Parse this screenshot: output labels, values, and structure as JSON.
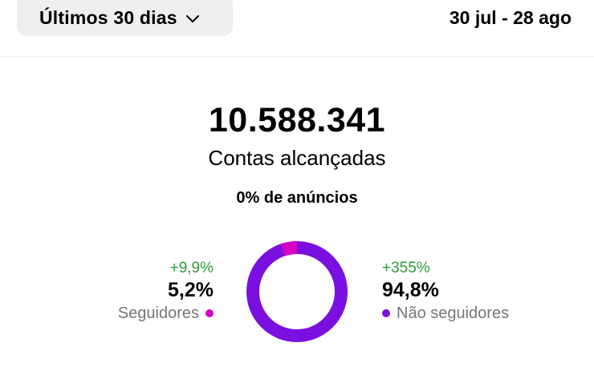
{
  "header": {
    "range_button_label": "Últimos 30 dias",
    "date_range": "30 jul - 28 ago"
  },
  "summary": {
    "total": "10.588.341",
    "label": "Contas alcançadas",
    "ads_share": "0% de anúncios"
  },
  "segments": [
    {
      "label": "Seguidores",
      "percent": "5,2%",
      "delta": "+9,9%",
      "value": 5.2,
      "color": "#d600c5"
    },
    {
      "label": "Não seguidores",
      "percent": "94,8%",
      "delta": "+355%",
      "value": 94.8,
      "color": "#7a10e0"
    }
  ],
  "colors": {
    "delta_positive": "#2e9b3a"
  },
  "icons": {
    "dropdown": "chevron-down-icon"
  }
}
